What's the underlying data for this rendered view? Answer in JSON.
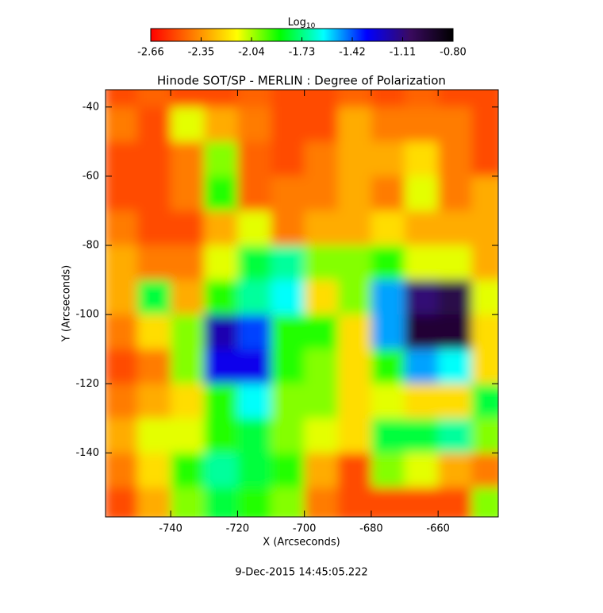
{
  "chart_data": {
    "type": "heatmap",
    "title": "Hinode SOT/SP - MERLIN : Degree of Polarization",
    "xlabel": "X (Arcseconds)",
    "ylabel": "Y (Arcseconds)",
    "annotation": "9-Dec-2015 14:45:05.222",
    "colorbar_label": "Log",
    "colorbar_label_sub": "10",
    "clim": [
      -2.66,
      -0.8
    ],
    "cticks": [
      -2.66,
      -2.35,
      -2.04,
      -1.73,
      -1.42,
      -1.11,
      {
        "value": -0.8,
        "label": "-0.80"
      }
    ],
    "colormap": [
      "#ff0000",
      "#ff7f00",
      "#ffff00",
      "#00ff00",
      "#00ffff",
      "#0000ff",
      "#3a0a60",
      "#000000"
    ],
    "xlim": [
      -759.5,
      -642
    ],
    "ylim": [
      -158.5,
      -35
    ],
    "xticks": [
      -740,
      -720,
      -700,
      -680,
      -660
    ],
    "yticks": [
      -40,
      -60,
      -80,
      -100,
      -120,
      -140
    ],
    "xbins": [
      -760,
      -750,
      -740,
      -730,
      -720,
      -710,
      -700,
      -690,
      -680,
      -670,
      -660,
      -650,
      -640
    ],
    "ybins": [
      -30,
      -40,
      -50,
      -60,
      -70,
      -80,
      -90,
      -100,
      -110,
      -120,
      -130,
      -140,
      -150,
      -160
    ],
    "values": [
      [
        -2.5,
        -2.45,
        -2.5,
        -2.5,
        -2.45,
        -2.5,
        -2.5,
        -2.45,
        -2.5,
        -2.45,
        -2.5,
        -2.5
      ],
      [
        -2.4,
        -2.5,
        -2.1,
        -2.3,
        -2.4,
        -2.5,
        -2.5,
        -2.3,
        -2.4,
        -2.4,
        -2.4,
        -2.5
      ],
      [
        -2.5,
        -2.5,
        -2.4,
        -2.0,
        -2.45,
        -2.5,
        -2.4,
        -2.3,
        -2.3,
        -2.2,
        -2.4,
        -2.5
      ],
      [
        -2.5,
        -2.5,
        -2.4,
        -1.9,
        -2.45,
        -2.4,
        -2.4,
        -2.3,
        -2.4,
        -2.1,
        -2.4,
        -2.3
      ],
      [
        -2.4,
        -2.5,
        -2.5,
        -2.3,
        -2.1,
        -2.4,
        -2.3,
        -2.3,
        -2.2,
        -2.3,
        -2.3,
        -2.3
      ],
      [
        -2.3,
        -2.4,
        -2.4,
        -2.1,
        -1.8,
        -1.7,
        -2.0,
        -2.0,
        -1.9,
        -2.1,
        -2.1,
        -2.3
      ],
      [
        -2.3,
        -1.8,
        -2.3,
        -1.9,
        -1.7,
        -1.6,
        -2.2,
        -2.0,
        -1.5,
        -1.1,
        -1.0,
        -2.1
      ],
      [
        -2.4,
        -2.2,
        -2.0,
        -1.2,
        -1.4,
        -1.9,
        -1.9,
        -2.2,
        -1.5,
        -0.95,
        -0.95,
        -2.2
      ],
      [
        -2.5,
        -2.4,
        -2.0,
        -1.3,
        -1.3,
        -1.9,
        -2.0,
        -2.2,
        -1.9,
        -1.5,
        -1.6,
        -2.2
      ],
      [
        -2.4,
        -2.3,
        -2.2,
        -1.9,
        -1.6,
        -2.0,
        -2.0,
        -2.2,
        -2.1,
        -2.2,
        -2.2,
        -1.8
      ],
      [
        -2.3,
        -2.1,
        -2.1,
        -1.9,
        -1.8,
        -2.0,
        -2.1,
        -2.2,
        -1.8,
        -1.8,
        -1.7,
        -2.0
      ],
      [
        -2.4,
        -2.2,
        -1.9,
        -1.7,
        -1.8,
        -1.9,
        -2.3,
        -2.5,
        -2.0,
        -2.1,
        -2.3,
        -2.4
      ],
      [
        -2.5,
        -2.3,
        -2.0,
        -1.8,
        -1.9,
        -2.0,
        -2.4,
        -2.5,
        -2.5,
        -2.5,
        -2.5,
        -2.0
      ]
    ]
  }
}
